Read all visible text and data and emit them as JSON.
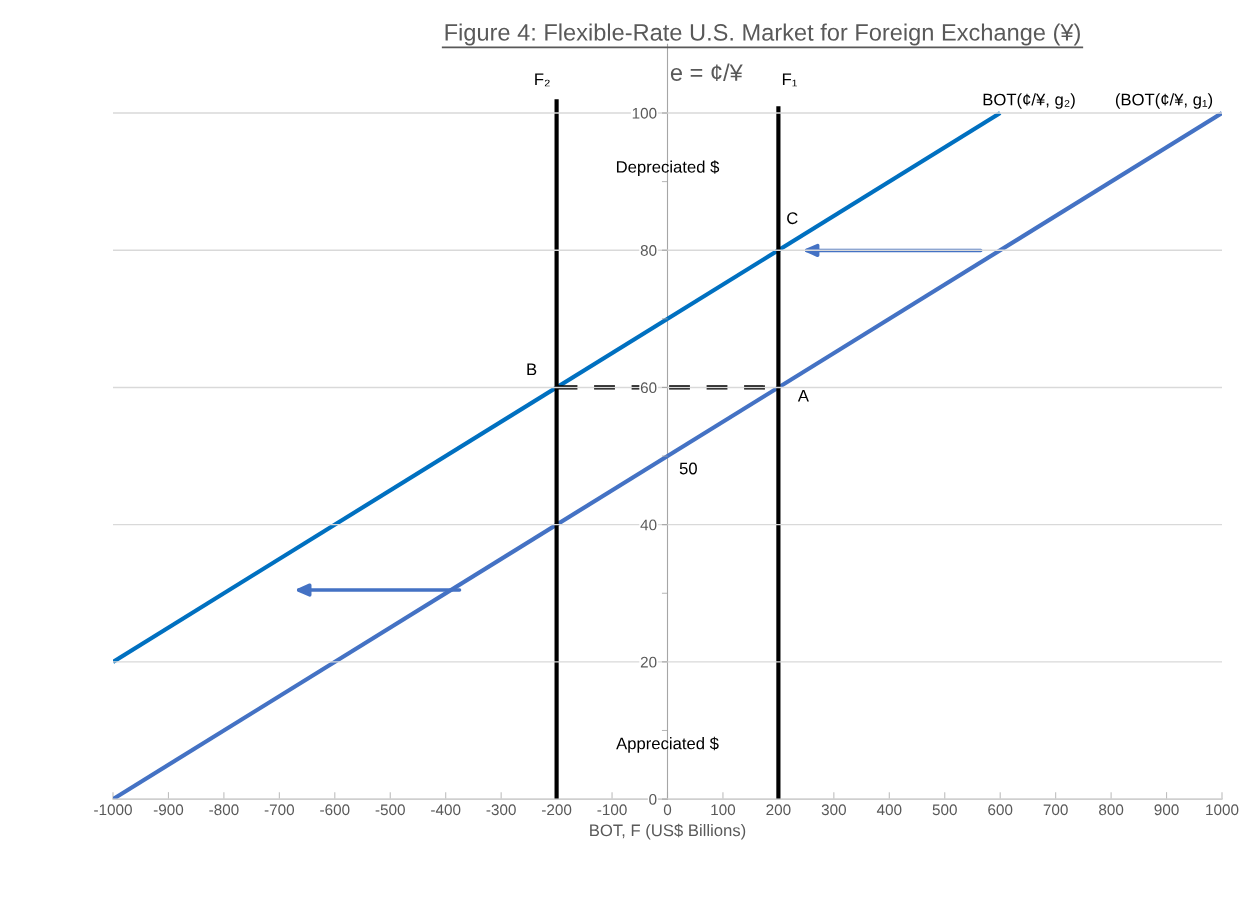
{
  "chart_data": {
    "type": "line",
    "title": "Figure 4: Flexible-Rate U.S. Market for Foreign Exchange (¥)",
    "xlabel": "BOT, F (US$ Billions)",
    "xlim": [
      -1000,
      1000
    ],
    "xticks": [
      -1000,
      -900,
      -800,
      -700,
      -600,
      -500,
      -400,
      -300,
      -200,
      -100,
      0,
      100,
      200,
      300,
      400,
      500,
      600,
      700,
      800,
      900,
      1000
    ],
    "ylim": [
      0,
      110
    ],
    "yticks": [
      0,
      {
        "value": 10,
        "label": null
      },
      20,
      {
        "value": 30,
        "label": null
      },
      40,
      {
        "value": 50,
        "label": null
      },
      60,
      {
        "value": 70,
        "label": null
      },
      80,
      {
        "value": 90,
        "label": null
      },
      100
    ],
    "grid": "y",
    "marker": "none",
    "line_style": "solid",
    "series": [
      {
        "color": "#4472c4",
        "x": [
          -1000,
          1000
        ],
        "values": [
          0,
          100
        ]
      },
      {
        "color": "#0070c0",
        "x": [
          -1000,
          600
        ],
        "values": [
          20,
          100
        ]
      },
      {
        "color": "#000000",
        "x": [
          -200,
          -200
        ],
        "values": [
          0,
          102
        ]
      },
      {
        "color": "#000000",
        "x": [
          200,
          200
        ],
        "values": [
          0,
          101
        ]
      },
      {
        "color": "#000000",
        "x": [
          -200,
          200
        ],
        "values": [
          60,
          60
        ],
        "line_style": "dashed"
      }
    ],
    "annotations": [
      "F₂",
      "F₁",
      "e = ¢/¥",
      "BOT(¢/¥, g₂)",
      "(BOT(¢/¥, g₁)",
      "Depreciated $",
      "Appreciated $",
      {
        "text": "C",
        "x": 200,
        "y": 80
      },
      {
        "text": "B",
        "x": -200,
        "y": 60
      },
      {
        "text": "A",
        "x": 200,
        "y": 60
      },
      {
        "text": "50",
        "x": 0,
        "y": 50
      }
    ]
  }
}
